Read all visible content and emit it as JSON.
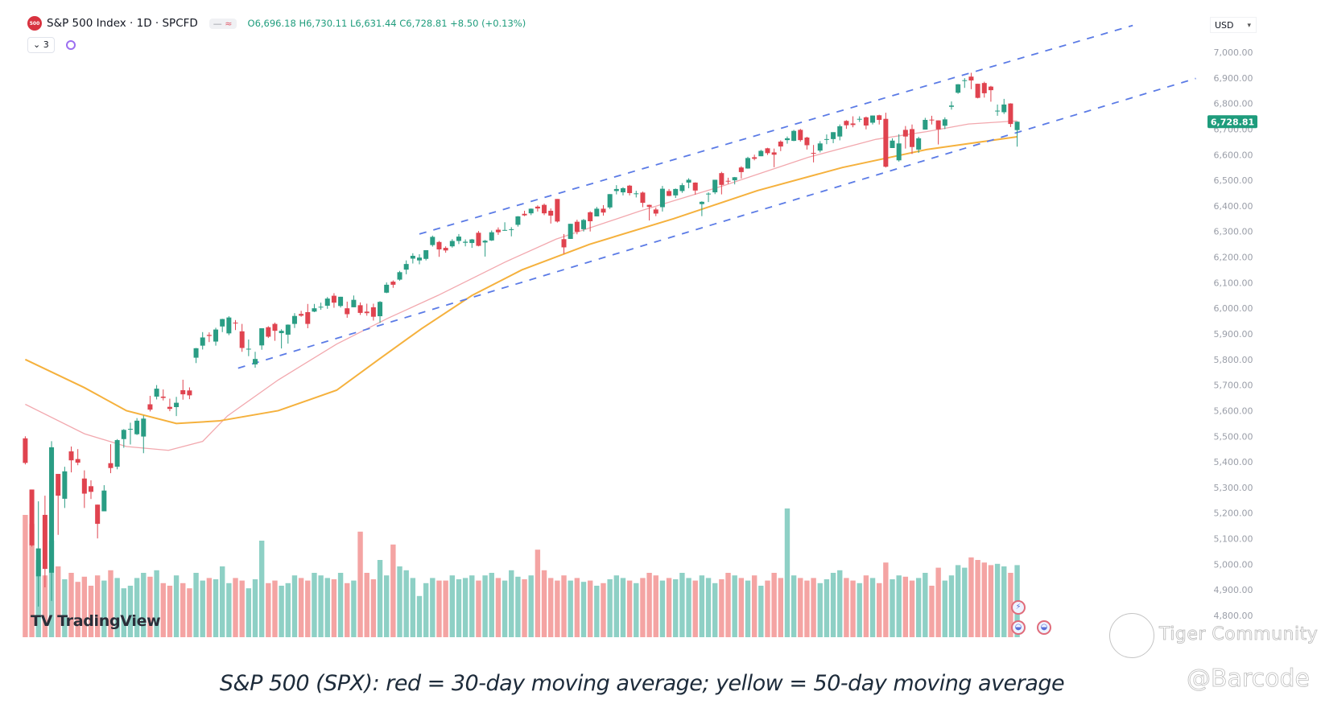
{
  "header": {
    "logo_text": "500",
    "symbol_title": "S&P 500 Index · 1D · SPCFD",
    "legend_icons": [
      "minus-icon",
      "approx-equal-icon"
    ],
    "open_label": "O",
    "open": "6,696.18",
    "high_label": "H",
    "high": "6,730.11",
    "low_label": "L",
    "low": "6,631.44",
    "close_label": "C",
    "close": "6,728.81",
    "change": "+8.50 (+0.13%)",
    "collapse_label": "⌄ 3",
    "currency": "USD"
  },
  "branding": {
    "tradingview": "TradingView",
    "watermark_community": "Tiger Community",
    "watermark_user": "@Barcode"
  },
  "caption": "S&P 500 (SPX): red = 30-day moving average; yellow = 50-day moving average",
  "colors": {
    "up": "#2a9d84",
    "down": "#e0434f",
    "vol_up": "#8ed0c5",
    "vol_down": "#f4a4a3",
    "ma30": "#f2a8ae",
    "ma50": "#f5b13d",
    "trendline": "#5b7be6",
    "last_price_bg": "#1e9c7c",
    "axis_text": "#9a9ea8"
  },
  "chart_data": {
    "type": "candlestick",
    "title": "",
    "ylim": [
      4800,
      7000
    ],
    "y_ticks": [
      "7,000.00",
      "6,900.00",
      "6,800.00",
      "6,700.00",
      "6,600.00",
      "6,500.00",
      "6,400.00",
      "6,300.00",
      "6,200.00",
      "6,100.00",
      "6,000.00",
      "5,900.00",
      "5,800.00",
      "5,700.00",
      "5,600.00",
      "5,500.00",
      "5,400.00",
      "5,300.00",
      "5,200.00",
      "5,100.00",
      "5,000.00",
      "4,900.00",
      "4,800.00"
    ],
    "last_price": 6728.81,
    "last_price_label": "6,728.81",
    "grid": false,
    "candles_ohlc": [
      [
        5492,
        5500,
        5390,
        5396
      ],
      [
        5292,
        5292,
        5069,
        5074
      ],
      [
        4953,
        5246,
        4835,
        5062
      ],
      [
        5193,
        5268,
        4910,
        4982
      ],
      [
        4967,
        5481,
        4857,
        5457
      ],
      [
        5353,
        5353,
        5115,
        5268
      ],
      [
        5256,
        5381,
        5220,
        5363
      ],
      [
        5441,
        5460,
        5359,
        5406
      ],
      [
        5411,
        5450,
        5387,
        5397
      ],
      [
        5335,
        5367,
        5220,
        5276
      ],
      [
        5305,
        5328,
        5255,
        5283
      ],
      [
        5233,
        5233,
        5101,
        5158
      ],
      [
        5207,
        5309,
        5207,
        5288
      ],
      [
        5395,
        5469,
        5356,
        5376
      ],
      [
        5381,
        5489,
        5371,
        5485
      ],
      [
        5489,
        5528,
        5455,
        5525
      ],
      [
        5529,
        5553,
        5468,
        5529
      ],
      [
        5508,
        5571,
        5505,
        5561
      ],
      [
        5499,
        5581,
        5434,
        5569
      ],
      [
        5625,
        5658,
        5597,
        5604
      ],
      [
        5655,
        5700,
        5644,
        5686
      ],
      [
        5655,
        5683,
        5640,
        5650
      ],
      [
        5615,
        5647,
        5598,
        5607
      ],
      [
        5614,
        5654,
        5579,
        5631
      ],
      [
        5680,
        5721,
        5643,
        5664
      ],
      [
        5679,
        5691,
        5645,
        5660
      ],
      [
        5807,
        5845,
        5786,
        5844
      ],
      [
        5854,
        5907,
        5839,
        5886
      ],
      [
        5896,
        5906,
        5868,
        5892
      ],
      [
        5870,
        5924,
        5854,
        5917
      ],
      [
        5929,
        5959,
        5907,
        5958
      ],
      [
        5902,
        5969,
        5895,
        5964
      ],
      [
        5944,
        5954,
        5915,
        5941
      ],
      [
        5910,
        5939,
        5830,
        5845
      ],
      [
        5842,
        5878,
        5813,
        5842
      ],
      [
        5781,
        5830,
        5768,
        5802
      ],
      [
        5855,
        5922,
        5838,
        5922
      ],
      [
        5926,
        5930,
        5884,
        5889
      ],
      [
        5939,
        5944,
        5873,
        5912
      ],
      [
        5903,
        5918,
        5843,
        5912
      ],
      [
        5897,
        5937,
        5862,
        5936
      ],
      [
        5939,
        5981,
        5923,
        5970
      ],
      [
        5978,
        5990,
        5967,
        5971
      ],
      [
        5985,
        6017,
        5922,
        5939
      ],
      [
        5987,
        6017,
        5985,
        6000
      ],
      [
        6005,
        6022,
        5994,
        6006
      ],
      [
        6010,
        6044,
        5998,
        6038
      ],
      [
        6049,
        6059,
        6002,
        6022
      ],
      [
        6009,
        6045,
        6003,
        6045
      ],
      [
        6000,
        6026,
        5963,
        5977
      ],
      [
        6004,
        6050,
        6004,
        6033
      ],
      [
        6012,
        6023,
        5974,
        5982
      ],
      [
        5987,
        6018,
        5971,
        5981
      ],
      [
        6004,
        6018,
        5952,
        5967
      ],
      [
        5969,
        6028,
        5943,
        6025
      ],
      [
        6061,
        6101,
        6059,
        6092
      ],
      [
        6104,
        6109,
        6080,
        6092
      ],
      [
        6112,
        6146,
        6108,
        6141
      ],
      [
        6151,
        6187,
        6133,
        6173
      ],
      [
        6194,
        6215,
        6175,
        6205
      ],
      [
        6187,
        6211,
        6172,
        6198
      ],
      [
        6193,
        6227,
        6187,
        6227
      ],
      [
        6247,
        6284,
        6241,
        6279
      ],
      [
        6259,
        6263,
        6201,
        6230
      ],
      [
        6236,
        6242,
        6217,
        6226
      ],
      [
        6242,
        6270,
        6237,
        6263
      ],
      [
        6263,
        6290,
        6251,
        6280
      ],
      [
        6256,
        6269,
        6242,
        6260
      ],
      [
        6255,
        6271,
        6236,
        6269
      ],
      [
        6295,
        6302,
        6242,
        6244
      ],
      [
        6257,
        6267,
        6202,
        6264
      ],
      [
        6265,
        6304,
        6263,
        6297
      ],
      [
        6307,
        6316,
        6287,
        6297
      ],
      [
        6304,
        6336,
        6303,
        6306
      ],
      [
        6307,
        6317,
        6281,
        6309
      ],
      [
        6326,
        6360,
        6319,
        6359
      ],
      [
        6369,
        6381,
        6360,
        6363
      ],
      [
        6371,
        6390,
        6364,
        6389
      ],
      [
        6397,
        6402,
        6378,
        6390
      ],
      [
        6404,
        6409,
        6364,
        6371
      ],
      [
        6381,
        6390,
        6331,
        6362
      ],
      [
        6427,
        6427,
        6335,
        6339
      ],
      [
        6270,
        6290,
        6213,
        6238
      ],
      [
        6271,
        6330,
        6271,
        6330
      ],
      [
        6338,
        6346,
        6289,
        6299
      ],
      [
        6309,
        6349,
        6300,
        6345
      ],
      [
        6375,
        6379,
        6300,
        6340
      ],
      [
        6359,
        6396,
        6359,
        6389
      ],
      [
        6389,
        6403,
        6362,
        6374
      ],
      [
        6394,
        6446,
        6388,
        6446
      ],
      [
        6458,
        6481,
        6445,
        6466
      ],
      [
        6453,
        6473,
        6441,
        6469
      ],
      [
        6479,
        6482,
        6441,
        6450
      ],
      [
        6446,
        6459,
        6433,
        6449
      ],
      [
        6452,
        6456,
        6395,
        6412
      ],
      [
        6404,
        6405,
        6343,
        6396
      ],
      [
        6386,
        6394,
        6360,
        6370
      ],
      [
        6395,
        6478,
        6378,
        6467
      ],
      [
        6458,
        6466,
        6438,
        6439
      ],
      [
        6441,
        6468,
        6431,
        6466
      ],
      [
        6458,
        6489,
        6451,
        6481
      ],
      [
        6491,
        6508,
        6469,
        6502
      ],
      [
        6491,
        6492,
        6444,
        6460
      ],
      [
        6407,
        6418,
        6360,
        6416
      ],
      [
        6447,
        6453,
        6415,
        6448
      ],
      [
        6453,
        6502,
        6446,
        6502
      ],
      [
        6528,
        6533,
        6445,
        6482
      ],
      [
        6498,
        6510,
        6486,
        6495
      ],
      [
        6500,
        6513,
        6484,
        6512
      ],
      [
        6550,
        6555,
        6507,
        6532
      ],
      [
        6546,
        6592,
        6545,
        6587
      ],
      [
        6590,
        6600,
        6578,
        6584
      ],
      [
        6594,
        6619,
        6594,
        6615
      ],
      [
        6625,
        6627,
        6599,
        6606
      ],
      [
        6609,
        6624,
        6551,
        6600
      ],
      [
        6651,
        6656,
        6614,
        6632
      ],
      [
        6657,
        6671,
        6643,
        6664
      ],
      [
        6654,
        6697,
        6653,
        6693
      ],
      [
        6697,
        6701,
        6651,
        6657
      ],
      [
        6667,
        6670,
        6620,
        6637
      ],
      [
        6607,
        6638,
        6570,
        6605
      ],
      [
        6616,
        6653,
        6609,
        6644
      ],
      [
        6661,
        6679,
        6641,
        6661
      ],
      [
        6661,
        6688,
        6645,
        6688
      ],
      [
        6671,
        6718,
        6656,
        6711
      ],
      [
        6732,
        6735,
        6701,
        6715
      ],
      [
        6722,
        6750,
        6707,
        6716
      ],
      [
        6740,
        6750,
        6728,
        6740
      ],
      [
        6746,
        6749,
        6699,
        6714
      ],
      [
        6725,
        6753,
        6718,
        6753
      ],
      [
        6754,
        6756,
        6718,
        6736
      ],
      [
        6740,
        6764,
        6550,
        6553
      ],
      [
        6626,
        6664,
        6626,
        6655
      ],
      [
        6578,
        6680,
        6573,
        6644
      ],
      [
        6697,
        6712,
        6624,
        6671
      ],
      [
        6700,
        6718,
        6603,
        6630
      ],
      [
        6620,
        6670,
        6607,
        6664
      ],
      [
        6698,
        6744,
        6698,
        6736
      ],
      [
        6737,
        6752,
        6718,
        6735
      ],
      [
        6734,
        6734,
        6640,
        6699
      ],
      [
        6713,
        6746,
        6700,
        6738
      ],
      [
        6787,
        6808,
        6776,
        6792
      ],
      [
        6842,
        6876,
        6838,
        6875
      ],
      [
        6891,
        6899,
        6861,
        6891
      ],
      [
        6905,
        6920,
        6856,
        6890
      ],
      [
        6877,
        6877,
        6820,
        6822
      ],
      [
        6880,
        6885,
        6823,
        6840
      ],
      [
        6866,
        6869,
        6807,
        6852
      ],
      [
        6771,
        6796,
        6752,
        6772
      ],
      [
        6766,
        6818,
        6759,
        6796
      ],
      [
        6800,
        6801,
        6708,
        6720
      ],
      [
        6696.18,
        6730.11,
        6631.44,
        6728.81
      ]
    ],
    "volume_relative": [
      95,
      88,
      60,
      48,
      75,
      55,
      45,
      50,
      43,
      47,
      40,
      48,
      44,
      52,
      46,
      38,
      40,
      46,
      50,
      47,
      52,
      42,
      40,
      48,
      42,
      38,
      50,
      44,
      46,
      45,
      55,
      42,
      46,
      44,
      38,
      45,
      75,
      42,
      44,
      40,
      42,
      48,
      46,
      44,
      50,
      48,
      46,
      45,
      50,
      42,
      44,
      82,
      50,
      45,
      60,
      48,
      72,
      55,
      52,
      46,
      32,
      42,
      46,
      44,
      44,
      48,
      45,
      46,
      48,
      44,
      48,
      50,
      46,
      44,
      52,
      47,
      45,
      48,
      68,
      52,
      46,
      44,
      48,
      44,
      46,
      43,
      44,
      40,
      42,
      45,
      48,
      46,
      44,
      42,
      46,
      50,
      48,
      44,
      46,
      45,
      50,
      46,
      44,
      48,
      46,
      42,
      45,
      50,
      48,
      46,
      44,
      48,
      40,
      44,
      50,
      46,
      100,
      48,
      46,
      44,
      46,
      42,
      45,
      50,
      52,
      46,
      44,
      42,
      48,
      46,
      42,
      58,
      45,
      48,
      47,
      44,
      46,
      50,
      40,
      54,
      44,
      48,
      56,
      54,
      62,
      60,
      58,
      56,
      57,
      55,
      50,
      56
    ],
    "ma30": [
      [
        0,
        5625
      ],
      [
        9,
        5510
      ],
      [
        15.4,
        5460
      ],
      [
        21.8,
        5445
      ],
      [
        27,
        5480
      ],
      [
        30.8,
        5580
      ],
      [
        38.5,
        5720
      ],
      [
        47.4,
        5860
      ],
      [
        55.1,
        5960
      ],
      [
        62.8,
        6050
      ],
      [
        73,
        6180
      ],
      [
        80.8,
        6270
      ],
      [
        93.6,
        6380
      ],
      [
        106.4,
        6480
      ],
      [
        119.2,
        6590
      ],
      [
        129.5,
        6660
      ],
      [
        137.2,
        6690
      ],
      [
        143.6,
        6720
      ],
      [
        151,
        6732
      ]
    ],
    "ma50": [
      [
        0,
        5800
      ],
      [
        9,
        5690
      ],
      [
        15.4,
        5600
      ],
      [
        23,
        5550
      ],
      [
        29.5,
        5560
      ],
      [
        38.5,
        5600
      ],
      [
        47.4,
        5680
      ],
      [
        53.8,
        5800
      ],
      [
        60.3,
        5920
      ],
      [
        68,
        6050
      ],
      [
        75.6,
        6150
      ],
      [
        85.9,
        6250
      ],
      [
        98.7,
        6350
      ],
      [
        111.5,
        6460
      ],
      [
        124.4,
        6550
      ],
      [
        137.2,
        6620
      ],
      [
        151,
        6670
      ]
    ],
    "trendlines": [
      {
        "from": [
          60,
          6290
        ],
        "to": [
          168.6,
          7105
        ],
        "style": "dashed"
      },
      {
        "from": [
          32.4,
          5766
        ],
        "to": [
          178.2,
          6898
        ],
        "style": "dashed"
      }
    ]
  }
}
